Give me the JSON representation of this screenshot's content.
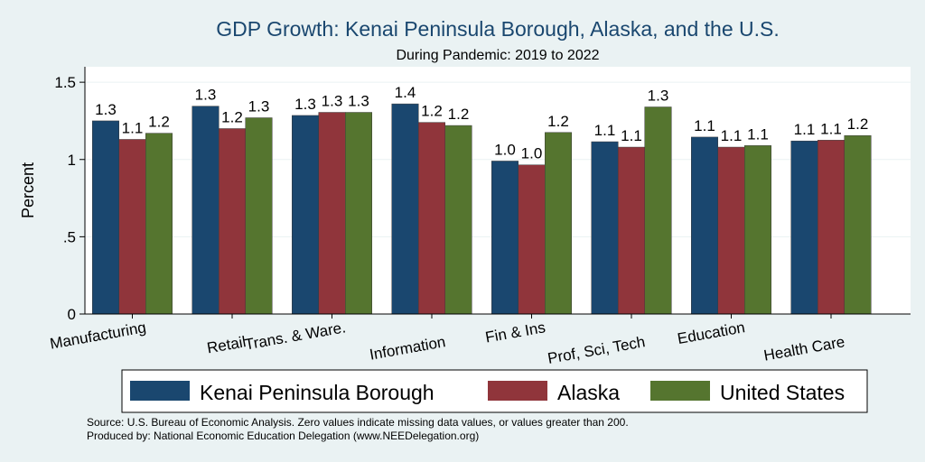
{
  "chart_data": {
    "type": "bar",
    "title": "GDP Growth: Kenai Peninsula Borough, Alaska, and the U.S.",
    "subtitle": "During Pandemic: 2019 to 2022",
    "ylabel": "Percent",
    "xlabel": "",
    "ylim": [
      0,
      1.6
    ],
    "yticks": [
      {
        "value": 0,
        "label": "0"
      },
      {
        "value": 0.5,
        "label": ".5"
      },
      {
        "value": 1,
        "label": "1"
      },
      {
        "value": 1.5,
        "label": "1.5"
      }
    ],
    "categories": [
      "Manufacturing",
      "Retail",
      "Trans. & Ware.",
      "Information",
      "Fin & Ins",
      "Prof, Sci, Tech",
      "Education",
      "Health Care"
    ],
    "series": [
      {
        "name": "Kenai Peninsula Borough",
        "color": "#1a476f",
        "values": [
          1.25,
          1.345,
          1.285,
          1.36,
          0.99,
          1.115,
          1.145,
          1.12
        ],
        "labels": [
          "1.3",
          "1.3",
          "1.3",
          "1.4",
          "1.0",
          "1.1",
          "1.1",
          "1.1"
        ]
      },
      {
        "name": "Alaska",
        "color": "#90353b",
        "values": [
          1.13,
          1.2,
          1.305,
          1.24,
          0.965,
          1.08,
          1.08,
          1.125
        ],
        "labels": [
          "1.1",
          "1.2",
          "1.3",
          "1.2",
          "1.0",
          "1.1",
          "1.1",
          "1.1"
        ]
      },
      {
        "name": "United States",
        "color": "#55752f",
        "values": [
          1.17,
          1.27,
          1.305,
          1.22,
          1.175,
          1.34,
          1.09,
          1.155
        ],
        "labels": [
          "1.2",
          "1.3",
          "1.3",
          "1.2",
          "1.2",
          "1.3",
          "1.1",
          "1.2"
        ]
      }
    ],
    "grid": true,
    "legend_position": "bottom"
  },
  "notes": {
    "source": "Source: U.S. Bureau of Economic Analysis. Zero values indicate missing data values, or values greater than 200.",
    "produced_by": "Produced by: National Economic Education Delegation (www.NEEDelegation.org)"
  }
}
